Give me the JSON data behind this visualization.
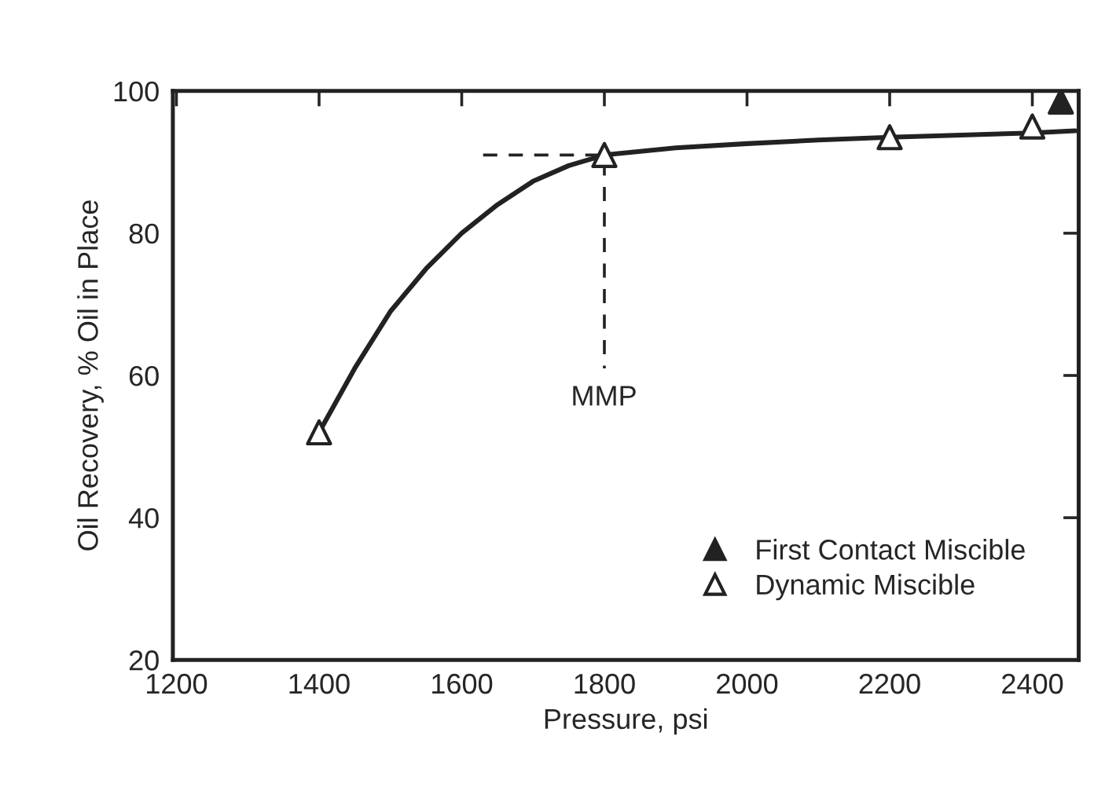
{
  "chart_data": {
    "type": "scatter",
    "xlabel": "Pressure, psi",
    "ylabel": "Oil Recovery, % Oil in Place",
    "xlim": [
      1195,
      2465
    ],
    "xticks": [
      1200,
      1400,
      1600,
      1800,
      2000,
      2200,
      2400
    ],
    "ylim": [
      20,
      100
    ],
    "yticks": [
      20,
      40,
      60,
      80,
      100
    ],
    "grid": false,
    "legend": "bottom right",
    "annotations": [
      "MMP"
    ],
    "series": [
      {
        "type": "line",
        "color": "#222222",
        "line_style": "solid",
        "x": [
          1400,
          1450,
          1500,
          1550,
          1600,
          1650,
          1700,
          1750,
          1800,
          1900,
          2000,
          2100,
          2200,
          2300,
          2400,
          2460
        ],
        "values": [
          52,
          61,
          69,
          75,
          80,
          84,
          87.3,
          89.5,
          91,
          92,
          92.6,
          93.1,
          93.5,
          93.8,
          94.1,
          94.4
        ]
      },
      {
        "type": "line",
        "color": "#222222",
        "line_style": "dashed",
        "x": [
          1630,
          1800,
          1800
        ],
        "values": [
          91,
          91,
          61
        ]
      },
      {
        "name": "First Contact Miscible",
        "color": "#222222",
        "marker": "triangle",
        "x": [
          2440
        ],
        "values": [
          98.5
        ]
      },
      {
        "name": "Dynamic Miscible",
        "color": "#ffffff",
        "marker": "triangle",
        "x": [
          1400,
          1800,
          2200,
          2400
        ],
        "values": [
          52,
          91,
          93.5,
          95
        ]
      }
    ]
  }
}
